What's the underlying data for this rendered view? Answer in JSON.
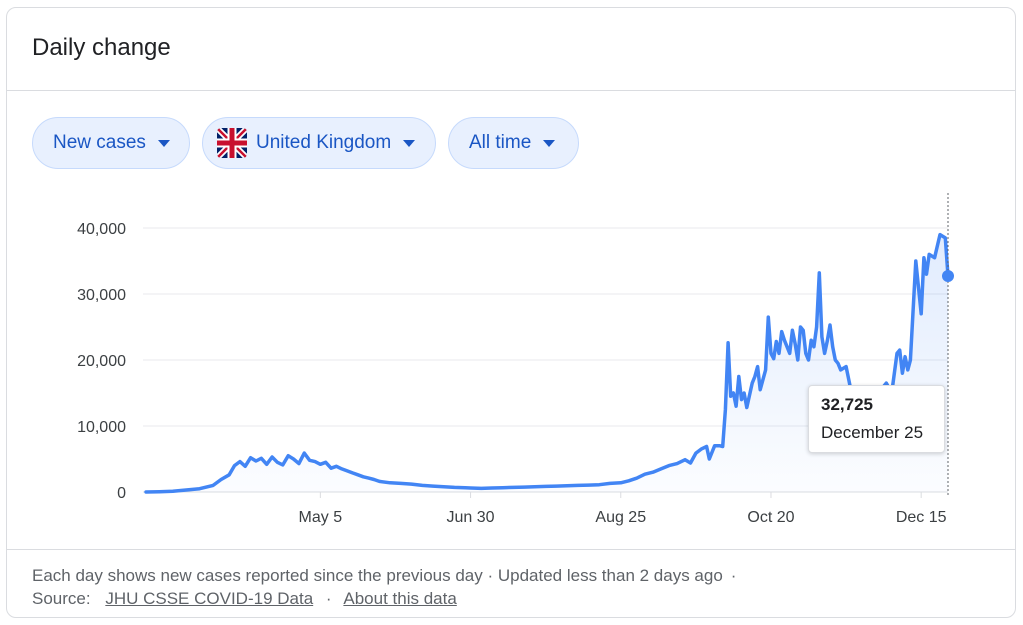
{
  "header": {
    "title": "Daily change"
  },
  "filters": {
    "metric": "New cases",
    "location": "United Kingdom",
    "range": "All time"
  },
  "tooltip": {
    "value": "32,725",
    "date": "December 25"
  },
  "footer": {
    "note": "Each day shows new cases reported since the previous day · Updated less than 2 days ago",
    "dot": "·",
    "source_label": "Source:",
    "source_link": "JHU CSSE COVID-19 Data",
    "about_link": "About this data"
  },
  "colors": {
    "line": "#4285f4",
    "chip_bg": "#e8f0fe",
    "chip_text": "#1a56c4",
    "grid": "#e8eaed"
  },
  "chart_data": {
    "type": "area",
    "title": "Daily change",
    "xlabel": "",
    "ylabel": "",
    "ylim": [
      0,
      40000
    ],
    "yticks": [
      "0",
      "10,000",
      "20,000",
      "30,000",
      "40,000"
    ],
    "ytick_values": [
      0,
      10000,
      20000,
      30000,
      40000
    ],
    "xticks": [
      "May 5",
      "Jun 30",
      "Aug 25",
      "Oct 20",
      "Dec 15"
    ],
    "xtick_values": [
      "2020-05-05",
      "2020-06-30",
      "2020-08-25",
      "2020-10-20",
      "2020-12-15"
    ],
    "series": [
      {
        "name": "New cases",
        "points": [
          [
            "2020-03-01",
            0
          ],
          [
            "2020-03-06",
            50
          ],
          [
            "2020-03-11",
            100
          ],
          [
            "2020-03-16",
            300
          ],
          [
            "2020-03-21",
            500
          ],
          [
            "2020-03-26",
            1000
          ],
          [
            "2020-03-29",
            1900
          ],
          [
            "2020-04-01",
            2600
          ],
          [
            "2020-04-03",
            4000
          ],
          [
            "2020-04-05",
            4600
          ],
          [
            "2020-04-07",
            3900
          ],
          [
            "2020-04-09",
            5200
          ],
          [
            "2020-04-11",
            4700
          ],
          [
            "2020-04-13",
            5100
          ],
          [
            "2020-04-15",
            4200
          ],
          [
            "2020-04-17",
            5300
          ],
          [
            "2020-04-19",
            4500
          ],
          [
            "2020-04-21",
            4100
          ],
          [
            "2020-04-23",
            5500
          ],
          [
            "2020-04-25",
            5000
          ],
          [
            "2020-04-27",
            4300
          ],
          [
            "2020-04-29",
            5900
          ],
          [
            "2020-05-01",
            4800
          ],
          [
            "2020-05-03",
            4600
          ],
          [
            "2020-05-05",
            4200
          ],
          [
            "2020-05-07",
            4500
          ],
          [
            "2020-05-09",
            3600
          ],
          [
            "2020-05-11",
            3900
          ],
          [
            "2020-05-13",
            3500
          ],
          [
            "2020-05-15",
            3200
          ],
          [
            "2020-05-17",
            2900
          ],
          [
            "2020-05-19",
            2600
          ],
          [
            "2020-05-21",
            2300
          ],
          [
            "2020-05-23",
            2100
          ],
          [
            "2020-05-25",
            1900
          ],
          [
            "2020-05-27",
            1600
          ],
          [
            "2020-05-31",
            1400
          ],
          [
            "2020-06-04",
            1300
          ],
          [
            "2020-06-08",
            1200
          ],
          [
            "2020-06-12",
            1000
          ],
          [
            "2020-06-16",
            900
          ],
          [
            "2020-06-20",
            800
          ],
          [
            "2020-06-24",
            700
          ],
          [
            "2020-06-28",
            650
          ],
          [
            "2020-06-30",
            600
          ],
          [
            "2020-07-04",
            550
          ],
          [
            "2020-07-08",
            600
          ],
          [
            "2020-07-12",
            650
          ],
          [
            "2020-07-16",
            700
          ],
          [
            "2020-07-20",
            750
          ],
          [
            "2020-07-24",
            800
          ],
          [
            "2020-07-28",
            850
          ],
          [
            "2020-08-01",
            900
          ],
          [
            "2020-08-05",
            950
          ],
          [
            "2020-08-09",
            1000
          ],
          [
            "2020-08-13",
            1050
          ],
          [
            "2020-08-17",
            1100
          ],
          [
            "2020-08-21",
            1300
          ],
          [
            "2020-08-25",
            1400
          ],
          [
            "2020-08-28",
            1700
          ],
          [
            "2020-08-31",
            2100
          ],
          [
            "2020-09-03",
            2700
          ],
          [
            "2020-09-06",
            3000
          ],
          [
            "2020-09-09",
            3500
          ],
          [
            "2020-09-12",
            4000
          ],
          [
            "2020-09-15",
            4300
          ],
          [
            "2020-09-18",
            4900
          ],
          [
            "2020-09-20",
            4400
          ],
          [
            "2020-09-22",
            5900
          ],
          [
            "2020-09-24",
            6500
          ],
          [
            "2020-09-26",
            6900
          ],
          [
            "2020-09-27",
            5000
          ],
          [
            "2020-09-29",
            7000
          ],
          [
            "2020-10-01",
            7000
          ],
          [
            "2020-10-02",
            6900
          ],
          [
            "2020-10-03",
            12500
          ],
          [
            "2020-10-04",
            22600
          ],
          [
            "2020-10-05",
            14500
          ],
          [
            "2020-10-06",
            15000
          ],
          [
            "2020-10-07",
            13000
          ],
          [
            "2020-10-08",
            17500
          ],
          [
            "2020-10-09",
            14000
          ],
          [
            "2020-10-10",
            15000
          ],
          [
            "2020-10-11",
            12800
          ],
          [
            "2020-10-13",
            16500
          ],
          [
            "2020-10-14",
            17500
          ],
          [
            "2020-10-15",
            19000
          ],
          [
            "2020-10-16",
            15500
          ],
          [
            "2020-10-18",
            18500
          ],
          [
            "2020-10-19",
            26500
          ],
          [
            "2020-10-20",
            21000
          ],
          [
            "2020-10-21",
            20200
          ],
          [
            "2020-10-22",
            22800
          ],
          [
            "2020-10-23",
            21000
          ],
          [
            "2020-10-24",
            24300
          ],
          [
            "2020-10-25",
            23000
          ],
          [
            "2020-10-27",
            21000
          ],
          [
            "2020-10-28",
            24500
          ],
          [
            "2020-10-29",
            22500
          ],
          [
            "2020-10-30",
            20000
          ],
          [
            "2020-10-31",
            25000
          ],
          [
            "2020-11-01",
            24500
          ],
          [
            "2020-11-02",
            21000
          ],
          [
            "2020-11-03",
            20000
          ],
          [
            "2020-11-04",
            23000
          ],
          [
            "2020-11-05",
            22000
          ],
          [
            "2020-11-06",
            25000
          ],
          [
            "2020-11-07",
            33200
          ],
          [
            "2020-11-08",
            23500
          ],
          [
            "2020-11-09",
            21000
          ],
          [
            "2020-11-10",
            22900
          ],
          [
            "2020-11-11",
            25300
          ],
          [
            "2020-11-12",
            22000
          ],
          [
            "2020-11-13",
            20000
          ],
          [
            "2020-11-14",
            19500
          ],
          [
            "2020-11-15",
            18500
          ],
          [
            "2020-11-17",
            19000
          ],
          [
            "2020-11-18",
            17000
          ],
          [
            "2020-11-20",
            13000
          ],
          [
            "2020-11-22",
            14500
          ],
          [
            "2020-11-24",
            12500
          ],
          [
            "2020-11-26",
            15500
          ],
          [
            "2020-11-28",
            14000
          ],
          [
            "2020-11-30",
            15500
          ],
          [
            "2020-12-02",
            16500
          ],
          [
            "2020-12-04",
            15000
          ],
          [
            "2020-12-06",
            21000
          ],
          [
            "2020-12-07",
            21500
          ],
          [
            "2020-12-08",
            18000
          ],
          [
            "2020-12-09",
            20500
          ],
          [
            "2020-12-10",
            18500
          ],
          [
            "2020-12-11",
            20000
          ],
          [
            "2020-12-13",
            35000
          ],
          [
            "2020-12-14",
            31000
          ],
          [
            "2020-12-15",
            27000
          ],
          [
            "2020-12-16",
            35500
          ],
          [
            "2020-12-17",
            33000
          ],
          [
            "2020-12-18",
            36000
          ],
          [
            "2020-12-20",
            35500
          ],
          [
            "2020-12-22",
            39000
          ],
          [
            "2020-12-24",
            38500
          ],
          [
            "2020-12-25",
            32725
          ]
        ]
      }
    ],
    "highlight": {
      "date": "2020-12-25",
      "value": 32725
    },
    "grid": true,
    "legend": "none"
  }
}
